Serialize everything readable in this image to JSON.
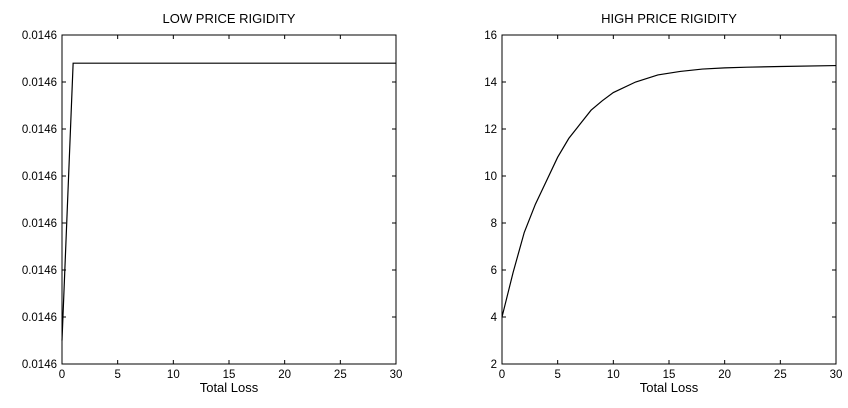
{
  "chart_data": [
    {
      "type": "line",
      "title": "LOW PRICE RIGIDITY",
      "xlabel": "Total Loss",
      "ylabel": "",
      "xlim": [
        0,
        30
      ],
      "xticks": [
        0,
        5,
        10,
        15,
        20,
        25,
        30
      ],
      "ylim": [
        0.0146,
        0.014614
      ],
      "yticks": [
        0.0146,
        0.014602,
        0.014604,
        0.014606,
        0.014608,
        0.01461,
        0.014612,
        0.014614
      ],
      "ytick_labels": [
        "0.0146",
        "0.0146",
        "0.0146",
        "0.0146",
        "0.0146",
        "0.0146",
        "0.0146",
        "0.0146"
      ],
      "grid": false,
      "series": [
        {
          "x": [
            0,
            1,
            30
          ],
          "y": [
            0.014601,
            0.0146128,
            0.0146128
          ]
        }
      ]
    },
    {
      "type": "line",
      "title": "HIGH PRICE RIGIDITY",
      "xlabel": "Total Loss",
      "ylabel": "",
      "xlim": [
        0,
        30
      ],
      "xticks": [
        0,
        5,
        10,
        15,
        20,
        25,
        30
      ],
      "ylim": [
        2,
        16
      ],
      "yticks": [
        2,
        4,
        6,
        8,
        10,
        12,
        14,
        16
      ],
      "ytick_labels": [
        "2",
        "4",
        "6",
        "8",
        "10",
        "12",
        "14",
        "16"
      ],
      "grid": false,
      "series": [
        {
          "x": [
            0,
            1,
            2,
            3,
            4,
            5,
            6,
            7,
            8,
            9,
            10,
            12,
            14,
            16,
            18,
            20,
            22,
            25,
            30
          ],
          "y": [
            4.0,
            5.9,
            7.6,
            8.8,
            9.8,
            10.8,
            11.6,
            12.2,
            12.8,
            13.2,
            13.55,
            14.0,
            14.3,
            14.45,
            14.55,
            14.6,
            14.63,
            14.66,
            14.7
          ]
        }
      ]
    }
  ]
}
